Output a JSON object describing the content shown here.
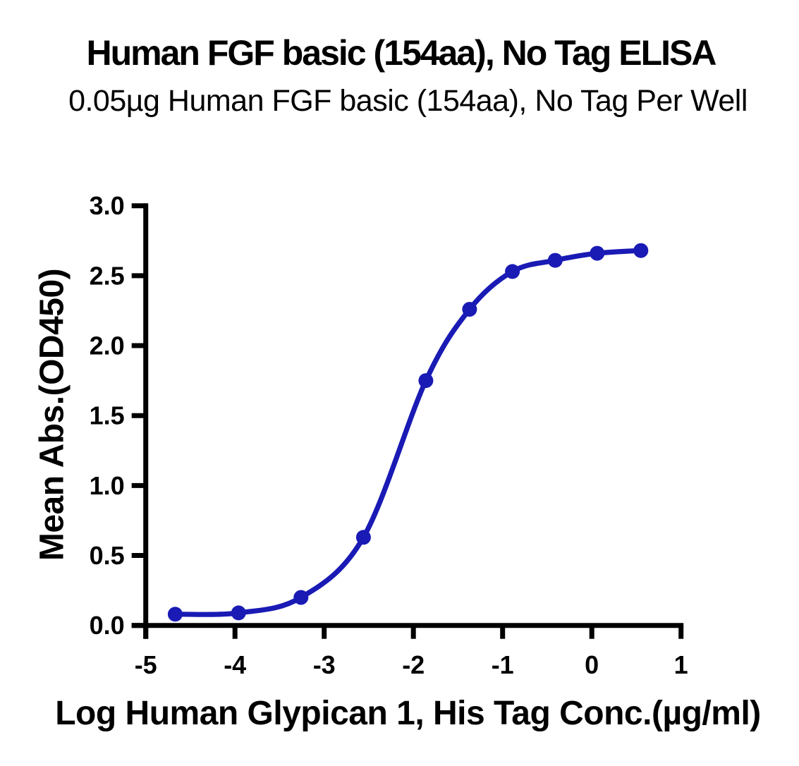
{
  "chart_data": {
    "type": "line",
    "title": "Human FGF basic (154aa), No Tag ELISA",
    "subtitle": "0.05µg Human FGF basic (154aa), No Tag Per Well",
    "xlabel": "Log Human Glypican 1, His Tag Conc.(µg/ml)",
    "ylabel": "Mean Abs.(OD450)",
    "xlim": [
      -5,
      1
    ],
    "ylim": [
      0,
      3
    ],
    "x_tick_labels": [
      "-5",
      "-4",
      "-3",
      "-2",
      "-1",
      "0",
      "1"
    ],
    "y_tick_labels": [
      "0.0",
      "0.5",
      "1.0",
      "1.5",
      "2.0",
      "2.5",
      "3.0"
    ],
    "grid": false,
    "legend": "none",
    "axis_color": "#000000",
    "background": "#ffffff",
    "series": [
      {
        "name": "Human Glypican 1, His Tag",
        "marker": "circle",
        "color": "#1a1ab5",
        "curve": "sigmoidal-4PL",
        "points": [
          {
            "x": -4.67,
            "y": 0.08
          },
          {
            "x": -3.96,
            "y": 0.09
          },
          {
            "x": -3.26,
            "y": 0.2
          },
          {
            "x": -2.56,
            "y": 0.63
          },
          {
            "x": -1.86,
            "y": 1.75
          },
          {
            "x": -1.37,
            "y": 2.26
          },
          {
            "x": -0.89,
            "y": 2.53
          },
          {
            "x": -0.41,
            "y": 2.61
          },
          {
            "x": 0.06,
            "y": 2.66
          },
          {
            "x": 0.55,
            "y": 2.68
          }
        ]
      }
    ]
  }
}
